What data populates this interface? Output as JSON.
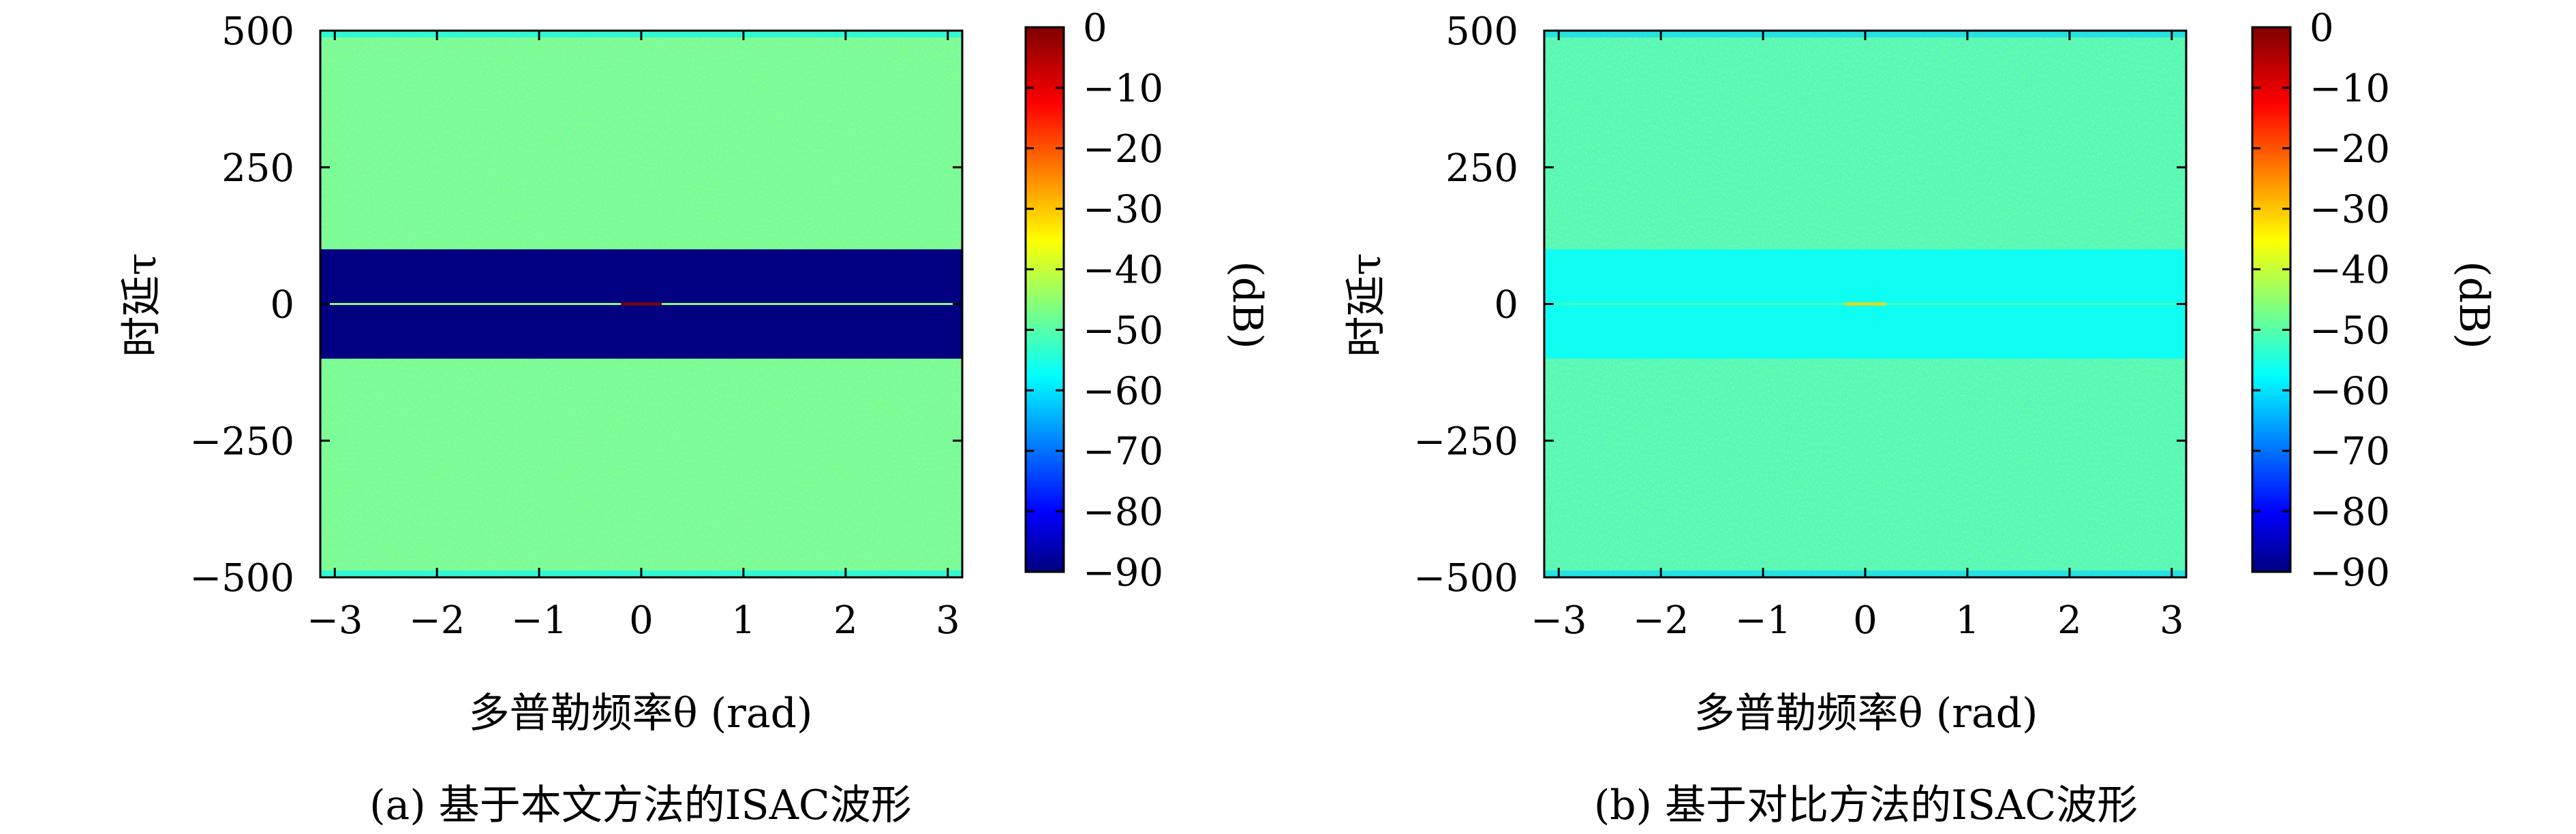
{
  "figure": {
    "panels": [
      {
        "caption": "(a) 基于本文方法的ISAC波形",
        "ylabel": "时延τ",
        "xlabel": "多普勒频率θ (rad)",
        "colorbar_label": "(dB)"
      },
      {
        "caption": "(b) 基于对比方法的ISAC波形",
        "ylabel": "时延τ",
        "xlabel": "多普勒频率θ (rad)",
        "colorbar_label": "(dB)"
      }
    ]
  },
  "chart_data": [
    {
      "type": "heatmap",
      "title": "",
      "caption": "(a) 基于本文方法的ISAC波形",
      "xlabel": "多普勒频率θ (rad)",
      "ylabel": "时延τ",
      "xlim": [
        -3.14159,
        3.14159
      ],
      "ylim": [
        -500,
        500
      ],
      "xticks": [
        -3,
        -2,
        -1,
        0,
        1,
        2,
        3
      ],
      "xtick_labels": [
        "−3",
        "−2",
        "−1",
        "0",
        "1",
        "2",
        "3"
      ],
      "yticks": [
        500,
        250,
        0,
        -250,
        -500
      ],
      "ytick_labels": [
        "500",
        "250",
        "0",
        "−250",
        "−500"
      ],
      "colormap": "jet",
      "colorbar": {
        "label": "(dB)",
        "range": [
          -90,
          0
        ],
        "ticks": [
          0,
          -10,
          -20,
          -30,
          -40,
          -50,
          -60,
          -70,
          -80,
          -90
        ],
        "tick_labels": [
          "0",
          "−10",
          "−20",
          "−30",
          "−40",
          "−50",
          "−60",
          "−70",
          "−80",
          "−90"
        ]
      },
      "regions": [
        {
          "name": "sidelobe background",
          "tau_range": [
            -500,
            500
          ],
          "level_db": -45
        },
        {
          "name": "suppressed notch",
          "tau_range": [
            -100,
            100
          ],
          "level_db": -90
        },
        {
          "name": "zero-delay ridge",
          "tau": 0,
          "level_db": -45,
          "peak_theta": 0,
          "peak_db": 0
        }
      ]
    },
    {
      "type": "heatmap",
      "title": "",
      "caption": "(b) 基于对比方法的ISAC波形",
      "xlabel": "多普勒频率θ (rad)",
      "ylabel": "时延τ",
      "xlim": [
        -3.14159,
        3.14159
      ],
      "ylim": [
        -500,
        500
      ],
      "xticks": [
        -3,
        -2,
        -1,
        0,
        1,
        2,
        3
      ],
      "xtick_labels": [
        "−3",
        "−2",
        "−1",
        "0",
        "1",
        "2",
        "3"
      ],
      "yticks": [
        500,
        250,
        0,
        -250,
        -500
      ],
      "ytick_labels": [
        "500",
        "250",
        "0",
        "−250",
        "−500"
      ],
      "colormap": "jet",
      "colorbar": {
        "label": "(dB)",
        "range": [
          -90,
          0
        ],
        "ticks": [
          0,
          -10,
          -20,
          -30,
          -40,
          -50,
          -60,
          -70,
          -80,
          -90
        ],
        "tick_labels": [
          "0",
          "−10",
          "−20",
          "−30",
          "−40",
          "−50",
          "−60",
          "−70",
          "−80",
          "−90"
        ]
      },
      "regions": [
        {
          "name": "sidelobe background",
          "tau_range": [
            -500,
            500
          ],
          "level_db": -48
        },
        {
          "name": "mildly suppressed band",
          "tau_range": [
            -100,
            100
          ],
          "level_db": -55
        },
        {
          "name": "zero-delay ridge",
          "tau": 0,
          "level_db": -50,
          "peak_theta": 0,
          "peak_db": -30
        }
      ]
    }
  ]
}
